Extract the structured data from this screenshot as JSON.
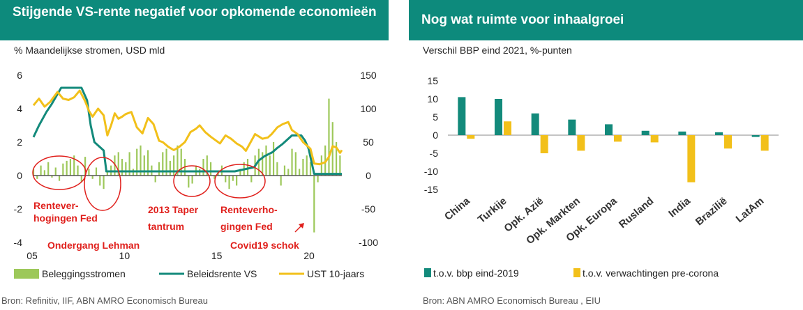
{
  "left": {
    "title": "Stijgende VS-rente negatief voor opkomende economieën",
    "subtitle": "% Maandelijkse stromen, USD mld",
    "source": "Bron: Refinitiv, IIF, ABN AMRO Economisch Bureau",
    "annotations": [
      "Rentever-",
      "hogingen Fed",
      "Ondergang Lehman",
      "2013 Taper",
      "tantrum",
      "Renteverho-",
      "gingen Fed",
      "Covid19 schok"
    ]
  },
  "right": {
    "title": "Nog wat ruimte voor inhaalgroei",
    "subtitle": "Verschil BBP eind 2021, %-punten",
    "source": "Bron:  ABN AMRO Economisch Bureau , EIU"
  },
  "colors": {
    "teal": "#138a7b",
    "yellow": "#f2c01a",
    "green": "#9dc85a",
    "red": "#e0201c",
    "header": "#0d8a7c"
  },
  "chart_data": [
    {
      "type": "line",
      "title": "Stijgende VS-rente negatief voor opkomende economieën",
      "ylabel": "% Maandelijkse stromen, USD mld",
      "x_ticks": [
        "05",
        "10",
        "15",
        "20"
      ],
      "xlim": [
        2005,
        2021.7
      ],
      "ylim_left": [
        -4,
        6
      ],
      "ylim_right": [
        -100,
        150
      ],
      "y_ticks_left": [
        "-4",
        "-2",
        "0",
        "2",
        "4",
        "6"
      ],
      "y_ticks_right": [
        "-100",
        "-50",
        "0",
        "50",
        "100",
        "150"
      ],
      "legend_position": "bottom",
      "series": [
        {
          "name": "Beleggingsstromen",
          "kind": "bar",
          "axis": "right",
          "color": "#9dc85a",
          "points": [
            [
              2005.0,
              10
            ],
            [
              2005.2,
              -5
            ],
            [
              2005.4,
              15
            ],
            [
              2005.6,
              8
            ],
            [
              2005.8,
              20
            ],
            [
              2006.0,
              -3
            ],
            [
              2006.2,
              12
            ],
            [
              2006.4,
              -8
            ],
            [
              2006.6,
              18
            ],
            [
              2006.8,
              22
            ],
            [
              2007.0,
              25
            ],
            [
              2007.2,
              30
            ],
            [
              2007.4,
              15
            ],
            [
              2007.6,
              -10
            ],
            [
              2007.8,
              28
            ],
            [
              2008.0,
              10
            ],
            [
              2008.2,
              -5
            ],
            [
              2008.4,
              12
            ],
            [
              2008.6,
              -15
            ],
            [
              2008.8,
              -20
            ],
            [
              2009.0,
              5
            ],
            [
              2009.2,
              15
            ],
            [
              2009.4,
              30
            ],
            [
              2009.6,
              35
            ],
            [
              2009.8,
              25
            ],
            [
              2010.0,
              20
            ],
            [
              2010.2,
              35
            ],
            [
              2010.4,
              10
            ],
            [
              2010.6,
              40
            ],
            [
              2010.8,
              45
            ],
            [
              2011.0,
              30
            ],
            [
              2011.2,
              38
            ],
            [
              2011.4,
              15
            ],
            [
              2011.6,
              -10
            ],
            [
              2011.8,
              20
            ],
            [
              2012.0,
              35
            ],
            [
              2012.2,
              40
            ],
            [
              2012.4,
              22
            ],
            [
              2012.6,
              30
            ],
            [
              2012.8,
              45
            ],
            [
              2013.0,
              40
            ],
            [
              2013.2,
              25
            ],
            [
              2013.4,
              -18
            ],
            [
              2013.6,
              -12
            ],
            [
              2013.8,
              15
            ],
            [
              2014.0,
              10
            ],
            [
              2014.2,
              25
            ],
            [
              2014.4,
              30
            ],
            [
              2014.6,
              20
            ],
            [
              2014.8,
              -5
            ],
            [
              2015.0,
              5
            ],
            [
              2015.2,
              15
            ],
            [
              2015.4,
              -10
            ],
            [
              2015.6,
              -20
            ],
            [
              2015.8,
              -8
            ],
            [
              2016.0,
              -15
            ],
            [
              2016.2,
              10
            ],
            [
              2016.4,
              20
            ],
            [
              2016.6,
              25
            ],
            [
              2016.8,
              -10
            ],
            [
              2017.0,
              30
            ],
            [
              2017.2,
              40
            ],
            [
              2017.4,
              35
            ],
            [
              2017.6,
              45
            ],
            [
              2017.8,
              30
            ],
            [
              2018.0,
              50
            ],
            [
              2018.2,
              20
            ],
            [
              2018.4,
              -15
            ],
            [
              2018.6,
              15
            ],
            [
              2018.8,
              10
            ],
            [
              2019.0,
              40
            ],
            [
              2019.2,
              35
            ],
            [
              2019.4,
              10
            ],
            [
              2019.6,
              25
            ],
            [
              2019.8,
              30
            ],
            [
              2020.0,
              20
            ],
            [
              2020.2,
              -85
            ],
            [
              2020.4,
              -10
            ],
            [
              2020.6,
              30
            ],
            [
              2020.8,
              45
            ],
            [
              2021.0,
              115
            ],
            [
              2021.2,
              80
            ],
            [
              2021.4,
              50
            ],
            [
              2021.6,
              30
            ]
          ]
        },
        {
          "name": "Beleidsrente VS",
          "kind": "line",
          "axis": "left",
          "color": "#138a7b",
          "points": [
            [
              2005.0,
              2.3
            ],
            [
              2005.3,
              3.0
            ],
            [
              2005.7,
              3.8
            ],
            [
              2006.0,
              4.3
            ],
            [
              2006.5,
              5.25
            ],
            [
              2007.6,
              5.25
            ],
            [
              2007.9,
              4.5
            ],
            [
              2008.1,
              3.0
            ],
            [
              2008.3,
              2.0
            ],
            [
              2008.8,
              1.5
            ],
            [
              2008.95,
              0.25
            ],
            [
              2015.9,
              0.25
            ],
            [
              2016.95,
              0.5
            ],
            [
              2017.2,
              0.9
            ],
            [
              2017.5,
              1.15
            ],
            [
              2017.95,
              1.4
            ],
            [
              2018.2,
              1.65
            ],
            [
              2018.5,
              1.9
            ],
            [
              2018.75,
              2.15
            ],
            [
              2019.0,
              2.4
            ],
            [
              2019.5,
              2.4
            ],
            [
              2019.7,
              2.1
            ],
            [
              2019.9,
              1.6
            ],
            [
              2020.2,
              0.1
            ],
            [
              2021.7,
              0.1
            ]
          ]
        },
        {
          "name": "UST 10-jaars",
          "kind": "line",
          "axis": "right",
          "color": "#f2c01a",
          "points": [
            [
              2005.0,
              105
            ],
            [
              2005.3,
              115
            ],
            [
              2005.6,
              103
            ],
            [
              2005.9,
              110
            ],
            [
              2006.3,
              125
            ],
            [
              2006.6,
              115
            ],
            [
              2006.9,
              113
            ],
            [
              2007.2,
              117
            ],
            [
              2007.5,
              127
            ],
            [
              2007.8,
              111
            ],
            [
              2008.0,
              97
            ],
            [
              2008.2,
              88
            ],
            [
              2008.5,
              100
            ],
            [
              2008.8,
              90
            ],
            [
              2009.0,
              60
            ],
            [
              2009.2,
              75
            ],
            [
              2009.4,
              93
            ],
            [
              2009.6,
              85
            ],
            [
              2009.8,
              88
            ],
            [
              2010.0,
              92
            ],
            [
              2010.3,
              95
            ],
            [
              2010.6,
              72
            ],
            [
              2010.9,
              63
            ],
            [
              2011.2,
              86
            ],
            [
              2011.5,
              77
            ],
            [
              2011.8,
              52
            ],
            [
              2012.0,
              50
            ],
            [
              2012.3,
              43
            ],
            [
              2012.6,
              38
            ],
            [
              2012.9,
              43
            ],
            [
              2013.2,
              50
            ],
            [
              2013.5,
              65
            ],
            [
              2013.8,
              70
            ],
            [
              2014.0,
              75
            ],
            [
              2014.3,
              65
            ],
            [
              2014.6,
              58
            ],
            [
              2014.9,
              52
            ],
            [
              2015.1,
              48
            ],
            [
              2015.4,
              60
            ],
            [
              2015.7,
              55
            ],
            [
              2016.0,
              48
            ],
            [
              2016.3,
              43
            ],
            [
              2016.5,
              37
            ],
            [
              2016.8,
              52
            ],
            [
              2017.0,
              62
            ],
            [
              2017.4,
              55
            ],
            [
              2017.7,
              57
            ],
            [
              2017.9,
              62
            ],
            [
              2018.2,
              72
            ],
            [
              2018.5,
              77
            ],
            [
              2018.8,
              80
            ],
            [
              2019.0,
              68
            ],
            [
              2019.3,
              62
            ],
            [
              2019.6,
              50
            ],
            [
              2019.8,
              45
            ],
            [
              2020.0,
              40
            ],
            [
              2020.2,
              18
            ],
            [
              2020.5,
              17
            ],
            [
              2020.8,
              20
            ],
            [
              2021.0,
              28
            ],
            [
              2021.2,
              44
            ],
            [
              2021.4,
              42
            ],
            [
              2021.6,
              34
            ],
            [
              2021.7,
              38
            ]
          ]
        }
      ]
    },
    {
      "type": "bar",
      "title": "Nog wat ruimte voor inhaalgroei",
      "ylabel": "Verschil BBP eind 2021, %-punten",
      "categories": [
        "China",
        "Turkije",
        "Opk. Azië",
        "Opk. Markten",
        "Opk. Europa",
        "Rusland",
        "India",
        "Brazilië",
        "LatAm"
      ],
      "ylim": [
        -15,
        15
      ],
      "y_ticks": [
        "-15",
        "-10",
        "-5",
        "0",
        "5",
        "10",
        "15"
      ],
      "legend_position": "bottom",
      "series": [
        {
          "name": "t.o.v. bbp eind-2019",
          "color": "#138a7b",
          "values": [
            10.5,
            10.0,
            6.0,
            4.3,
            3.0,
            1.2,
            1.0,
            0.8,
            -0.5
          ]
        },
        {
          "name": "t.o.v. verwachtingen pre-corona",
          "color": "#f2c01a",
          "values": [
            -1.0,
            3.8,
            -5.0,
            -4.3,
            -1.8,
            -2.0,
            -13.0,
            -3.7,
            -4.3
          ]
        }
      ]
    }
  ]
}
